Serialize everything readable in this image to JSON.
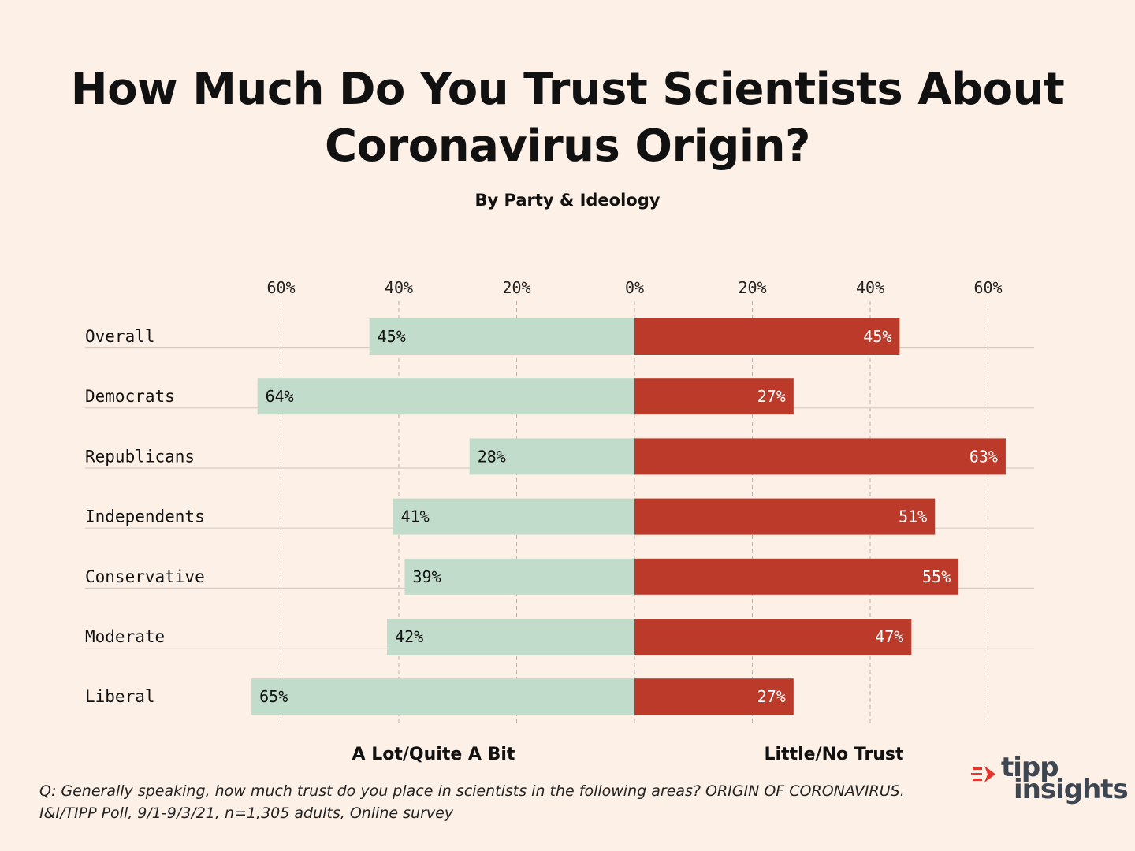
{
  "header": {
    "title_line1": "How Much Do You Trust Scientists About",
    "title_line2": "Coronavirus Origin?",
    "subtitle": "By Party & Ideology"
  },
  "chart_data": {
    "type": "bar",
    "orientation": "horizontal-diverging",
    "title": "How Much Do You Trust Scientists About Coronavirus Origin?",
    "subtitle": "By Party & Ideology",
    "categories": [
      "Overall",
      "Democrats",
      "Republicans",
      "Independents",
      "Conservative",
      "Moderate",
      "Liberal"
    ],
    "series": [
      {
        "name": "A Lot/Quite A Bit",
        "color": "#c2dccb",
        "direction": "left",
        "values": [
          45,
          64,
          28,
          41,
          39,
          42,
          65
        ]
      },
      {
        "name": "Little/No Trust",
        "color": "#bb3a2a",
        "direction": "right",
        "values": [
          45,
          27,
          63,
          51,
          55,
          47,
          27
        ]
      }
    ],
    "xlim": [
      -60,
      60
    ],
    "ticks": [
      -60,
      -40,
      -20,
      0,
      20,
      40,
      60
    ],
    "tick_labels": [
      "60%",
      "40%",
      "20%",
      "0%",
      "20%",
      "40%",
      "60%"
    ],
    "left_label": "A Lot/Quite A Bit",
    "right_label": "Little/No Trust",
    "value_suffix": "%",
    "grid": true
  },
  "footnote": {
    "line1": "Q:  Generally speaking, how much trust do you place in scientists in the following areas? ORIGIN OF CORONAVIRUS.",
    "line2": "I&I/TIPP Poll, 9/1-9/3/21, n=1,305 adults, Online survey"
  },
  "logo": {
    "line1": "tipp",
    "line2": "insights",
    "icon": "arrow-lines-icon"
  }
}
